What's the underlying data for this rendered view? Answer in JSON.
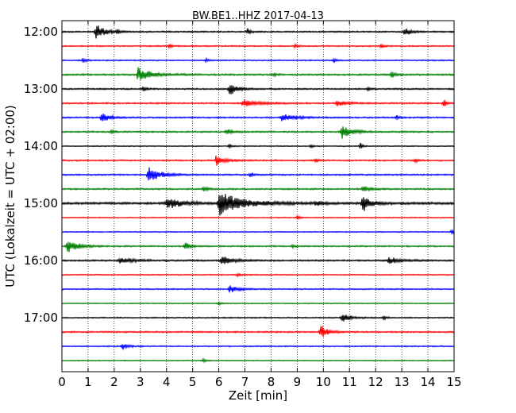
{
  "chart_data": {
    "type": "line",
    "title": "BW.BE1..HHZ 2017-04-13",
    "xlabel": "Zeit  [min]",
    "ylabel": "UTC (Lokalzeit = UTC + 02:00)",
    "xlim": [
      0,
      15
    ],
    "x_ticks": [
      "0",
      "1",
      "2",
      "3",
      "4",
      "5",
      "6",
      "7",
      "8",
      "9",
      "10",
      "11",
      "12",
      "13",
      "14",
      "15"
    ],
    "y_ticks": [
      {
        "label": "12:00",
        "row": 0
      },
      {
        "label": "13:00",
        "row": 4
      },
      {
        "label": "14:00",
        "row": 8
      },
      {
        "label": "15:00",
        "row": 12
      },
      {
        "label": "16:00",
        "row": 16
      },
      {
        "label": "17:00",
        "row": 20
      }
    ],
    "grid_x": "dotted",
    "colors": [
      "#000000",
      "#ff0000",
      "#0000ff",
      "#008000"
    ],
    "traces": [
      {
        "start": "12:00",
        "color": "#000000",
        "noise": 0.6,
        "events": [
          {
            "t": 1.3,
            "amp": 12,
            "dur": 0.3
          },
          {
            "t": 2.1,
            "amp": 3,
            "dur": 0.1
          },
          {
            "t": 7.1,
            "amp": 5,
            "dur": 0.1
          },
          {
            "t": 13.1,
            "amp": 7,
            "dur": 0.2
          }
        ]
      },
      {
        "start": "12:15",
        "color": "#ff0000",
        "noise": 0.5,
        "events": [
          {
            "t": 4.1,
            "amp": 4,
            "dur": 0.1
          },
          {
            "t": 8.9,
            "amp": 3,
            "dur": 0.1
          },
          {
            "t": 12.2,
            "amp": 4,
            "dur": 0.1
          }
        ]
      },
      {
        "start": "12:30",
        "color": "#0000ff",
        "noise": 0.5,
        "events": [
          {
            "t": 0.8,
            "amp": 4,
            "dur": 0.1
          },
          {
            "t": 5.5,
            "amp": 3,
            "dur": 0.1
          },
          {
            "t": 10.4,
            "amp": 3,
            "dur": 0.1
          }
        ]
      },
      {
        "start": "12:45",
        "color": "#008000",
        "noise": 0.7,
        "events": [
          {
            "t": 2.9,
            "amp": 10,
            "dur": 0.5
          },
          {
            "t": 8.1,
            "amp": 3,
            "dur": 0.1
          },
          {
            "t": 12.6,
            "amp": 5,
            "dur": 0.15
          }
        ]
      },
      {
        "start": "13:00",
        "color": "#000000",
        "noise": 0.6,
        "events": [
          {
            "t": 3.1,
            "amp": 4,
            "dur": 0.1
          },
          {
            "t": 6.4,
            "amp": 9,
            "dur": 0.3
          },
          {
            "t": 11.7,
            "amp": 3,
            "dur": 0.1
          }
        ]
      },
      {
        "start": "13:15",
        "color": "#ff0000",
        "noise": 0.6,
        "events": [
          {
            "t": 6.9,
            "amp": 5,
            "dur": 0.6
          },
          {
            "t": 10.5,
            "amp": 4,
            "dur": 0.4
          },
          {
            "t": 14.6,
            "amp": 7,
            "dur": 0.1
          }
        ]
      },
      {
        "start": "13:30",
        "color": "#0000ff",
        "noise": 0.6,
        "events": [
          {
            "t": 1.5,
            "amp": 7,
            "dur": 0.3
          },
          {
            "t": 8.4,
            "amp": 6,
            "dur": 0.5
          },
          {
            "t": 12.8,
            "amp": 3,
            "dur": 0.1
          }
        ]
      },
      {
        "start": "13:45",
        "color": "#008000",
        "noise": 0.6,
        "events": [
          {
            "t": 1.9,
            "amp": 3,
            "dur": 0.1
          },
          {
            "t": 6.3,
            "amp": 4,
            "dur": 0.2
          },
          {
            "t": 10.7,
            "amp": 10,
            "dur": 0.35
          }
        ]
      },
      {
        "start": "14:00",
        "color": "#000000",
        "noise": 0.4,
        "events": [
          {
            "t": 6.4,
            "amp": 3,
            "dur": 0.1
          },
          {
            "t": 9.5,
            "amp": 3,
            "dur": 0.1
          },
          {
            "t": 11.4,
            "amp": 5,
            "dur": 0.1
          }
        ]
      },
      {
        "start": "14:15",
        "color": "#ff0000",
        "noise": 0.6,
        "events": [
          {
            "t": 5.9,
            "amp": 8,
            "dur": 0.3
          },
          {
            "t": 9.7,
            "amp": 3,
            "dur": 0.1
          },
          {
            "t": 13.5,
            "amp": 3,
            "dur": 0.1
          }
        ]
      },
      {
        "start": "14:30",
        "color": "#0000ff",
        "noise": 0.6,
        "events": [
          {
            "t": 3.3,
            "amp": 13,
            "dur": 0.4
          },
          {
            "t": 7.2,
            "amp": 3,
            "dur": 0.1
          }
        ]
      },
      {
        "start": "14:45",
        "color": "#008000",
        "noise": 0.6,
        "events": [
          {
            "t": 5.4,
            "amp": 3,
            "dur": 0.2
          },
          {
            "t": 11.5,
            "amp": 4,
            "dur": 0.3
          }
        ]
      },
      {
        "start": "15:00",
        "color": "#000000",
        "noise": 1.0,
        "events": [
          {
            "t": 4.0,
            "amp": 8,
            "dur": 0.5
          },
          {
            "t": 6.0,
            "amp": 17,
            "dur": 0.9
          },
          {
            "t": 9.7,
            "amp": 4,
            "dur": 0.2
          },
          {
            "t": 11.5,
            "amp": 12,
            "dur": 0.3
          }
        ]
      },
      {
        "start": "15:15",
        "color": "#ff0000",
        "noise": 0.4,
        "events": [
          {
            "t": 9.0,
            "amp": 3,
            "dur": 0.1
          }
        ]
      },
      {
        "start": "15:30",
        "color": "#0000ff",
        "noise": 0.4,
        "events": [
          {
            "t": 14.9,
            "amp": 5,
            "dur": 0.1
          }
        ]
      },
      {
        "start": "15:45",
        "color": "#008000",
        "noise": 0.6,
        "events": [
          {
            "t": 0.2,
            "amp": 10,
            "dur": 0.4
          },
          {
            "t": 4.7,
            "amp": 6,
            "dur": 0.2
          },
          {
            "t": 8.8,
            "amp": 3,
            "dur": 0.1
          }
        ]
      },
      {
        "start": "16:00",
        "color": "#000000",
        "noise": 0.7,
        "events": [
          {
            "t": 2.2,
            "amp": 4,
            "dur": 0.5
          },
          {
            "t": 6.1,
            "amp": 8,
            "dur": 0.35
          },
          {
            "t": 12.5,
            "amp": 5,
            "dur": 0.4
          }
        ]
      },
      {
        "start": "16:15",
        "color": "#ff0000",
        "noise": 0.4,
        "events": [
          {
            "t": 6.7,
            "amp": 2,
            "dur": 0.2
          }
        ]
      },
      {
        "start": "16:30",
        "color": "#0000ff",
        "noise": 0.5,
        "events": [
          {
            "t": 6.4,
            "amp": 6,
            "dur": 0.3
          }
        ]
      },
      {
        "start": "16:45",
        "color": "#008000",
        "noise": 0.4,
        "events": [
          {
            "t": 6.0,
            "amp": 3,
            "dur": 0.1
          }
        ]
      },
      {
        "start": "17:00",
        "color": "#000000",
        "noise": 0.5,
        "events": [
          {
            "t": 10.7,
            "amp": 7,
            "dur": 0.3
          },
          {
            "t": 12.3,
            "amp": 3,
            "dur": 0.1
          }
        ]
      },
      {
        "start": "17:15",
        "color": "#ff0000",
        "noise": 0.6,
        "events": [
          {
            "t": 9.9,
            "amp": 11,
            "dur": 0.25
          }
        ]
      },
      {
        "start": "17:30",
        "color": "#0000ff",
        "noise": 0.5,
        "events": [
          {
            "t": 2.3,
            "amp": 5,
            "dur": 0.2
          }
        ]
      },
      {
        "start": "17:45",
        "color": "#008000",
        "noise": 0.4,
        "events": [
          {
            "t": 5.4,
            "amp": 3,
            "dur": 0.1
          }
        ]
      }
    ]
  }
}
